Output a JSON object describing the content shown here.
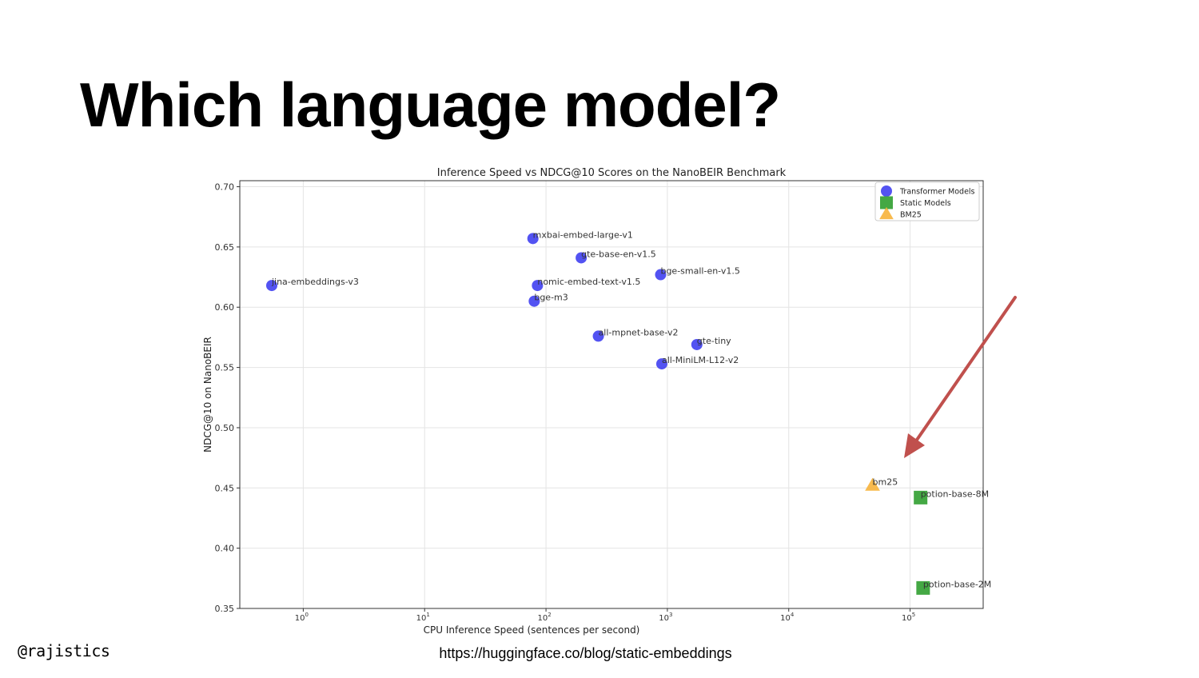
{
  "slide": {
    "title": "Which language model?",
    "handle": "@rajistics",
    "source_url": "https://huggingface.co/blog/static-embeddings"
  },
  "chart_data": {
    "type": "scatter",
    "title": "Inference Speed vs NDCG@10 Scores on the NanoBEIR Benchmark",
    "xlabel": "CPU Inference Speed (sentences per second)",
    "ylabel": "NDCG@10 on NanoBEIR",
    "x_scale": "log",
    "xlim": [
      0.3,
      400000
    ],
    "ylim": [
      0.35,
      0.705
    ],
    "x_ticks": [
      {
        "value": 1,
        "base": "10",
        "exp": "0"
      },
      {
        "value": 10,
        "base": "10",
        "exp": "1"
      },
      {
        "value": 100,
        "base": "10",
        "exp": "2"
      },
      {
        "value": 1000,
        "base": "10",
        "exp": "3"
      },
      {
        "value": 10000,
        "base": "10",
        "exp": "4"
      },
      {
        "value": 100000,
        "base": "10",
        "exp": "5"
      }
    ],
    "y_ticks": [
      "0.35",
      "0.40",
      "0.45",
      "0.50",
      "0.55",
      "0.60",
      "0.65",
      "0.70"
    ],
    "grid": true,
    "legend_position": "top-right",
    "series": [
      {
        "name": "Transformer Models",
        "marker": "circle",
        "color": "#3b3bf0",
        "points": [
          {
            "label": "jina-embeddings-v3",
            "x": 0.55,
            "y": 0.618
          },
          {
            "label": "mxbai-embed-large-v1",
            "x": 78,
            "y": 0.657
          },
          {
            "label": "gte-base-en-v1.5",
            "x": 195,
            "y": 0.641
          },
          {
            "label": "nomic-embed-text-v1.5",
            "x": 85,
            "y": 0.618
          },
          {
            "label": "bge-m3",
            "x": 80,
            "y": 0.605
          },
          {
            "label": "bge-small-en-v1.5",
            "x": 880,
            "y": 0.627
          },
          {
            "label": "all-mpnet-base-v2",
            "x": 270,
            "y": 0.576
          },
          {
            "label": "gte-tiny",
            "x": 1750,
            "y": 0.569
          },
          {
            "label": "all-MiniLM-L12-v2",
            "x": 900,
            "y": 0.553
          }
        ]
      },
      {
        "name": "Static Models",
        "marker": "square",
        "color": "#3aa33a",
        "points": [
          {
            "label": "potion-base-8M",
            "x": 122000,
            "y": 0.442
          },
          {
            "label": "potion-base-2M",
            "x": 128000,
            "y": 0.367
          }
        ]
      },
      {
        "name": "BM25",
        "marker": "triangle",
        "color": "#f7b23b",
        "points": [
          {
            "label": "bm25",
            "x": 49000,
            "y": 0.452
          }
        ]
      }
    ],
    "annotation_arrow_color": "#c0504d"
  }
}
